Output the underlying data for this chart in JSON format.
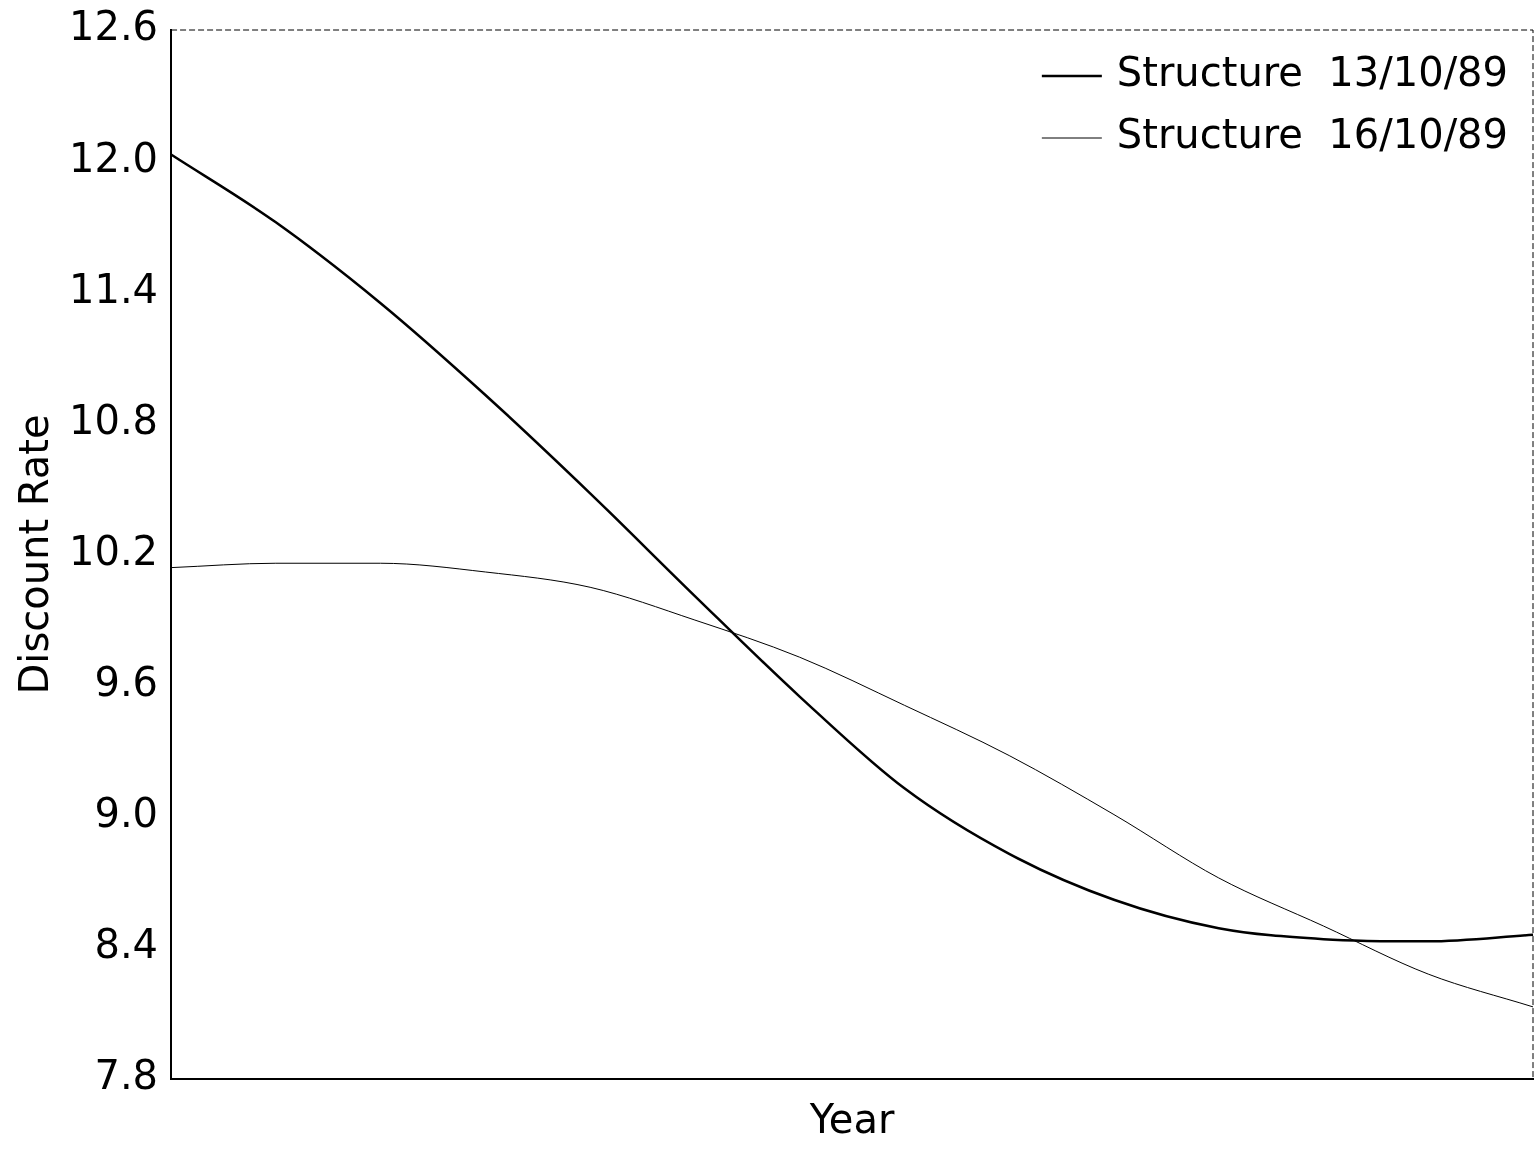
{
  "chart_data": {
    "type": "line",
    "xlabel": "Year",
    "ylabel": "Discount Rate",
    "categories": [
      null,
      null,
      null,
      null,
      null,
      null,
      null,
      null,
      null,
      null,
      null,
      null,
      null,
      null
    ],
    "series": [
      {
        "name": "Structure  13/10/89",
        "color": "#000000",
        "values": [
          12.03,
          11.72,
          11.35,
          10.93,
          10.48,
          10.01,
          9.55,
          9.13,
          8.83,
          8.62,
          8.49,
          8.44,
          8.43,
          8.46
        ]
      },
      {
        "name": "Structure  16/10/89",
        "color": "#000000",
        "values": [
          10.14,
          10.16,
          10.16,
          10.12,
          10.05,
          9.9,
          9.73,
          9.51,
          9.28,
          9.01,
          8.72,
          8.5,
          8.28,
          8.13
        ]
      }
    ],
    "ylim": [
      7.8,
      12.6
    ],
    "yticks": [
      7.8,
      8.4,
      {
        "value": 9,
        "label": "9.0"
      },
      9.6,
      10.2,
      10.8,
      11.4,
      {
        "value": 12,
        "label": "12.0"
      },
      12.6
    ],
    "grid": false,
    "legend": "top right",
    "marker": "none",
    "tick_labels": "y"
  }
}
